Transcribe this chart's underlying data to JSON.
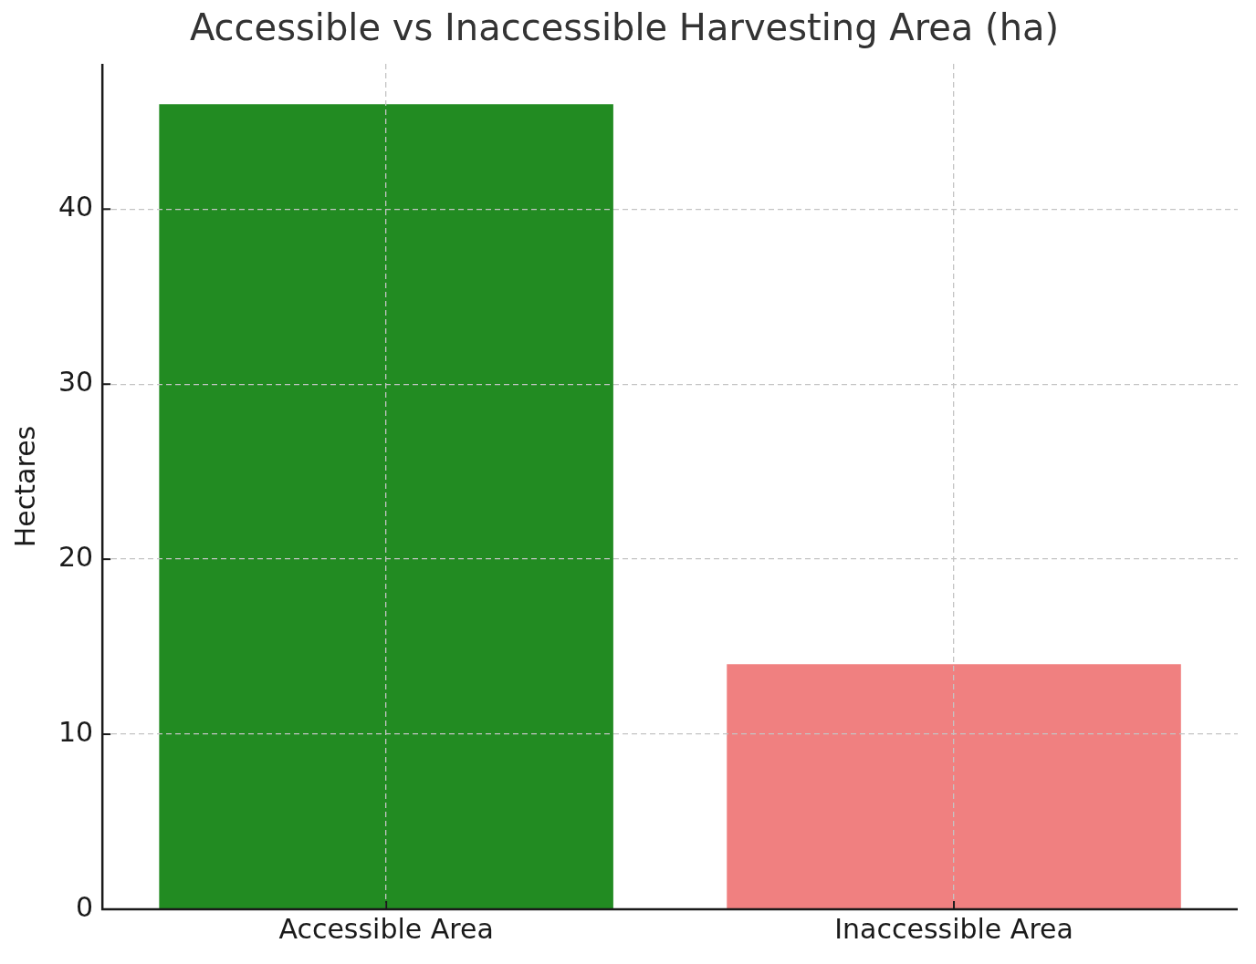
{
  "chart_data": {
    "type": "bar",
    "title": "Accessible vs Inaccessible Harvesting Area (ha)",
    "ylabel": "Hectares",
    "categories": [
      "Accessible Area",
      "Inaccessible Area"
    ],
    "values": [
      46,
      14
    ],
    "colors": [
      "#228b22",
      "#f08080"
    ],
    "ylim": [
      0,
      48.3
    ],
    "yticks": [
      0,
      10,
      20,
      30,
      40
    ],
    "grid": true
  }
}
